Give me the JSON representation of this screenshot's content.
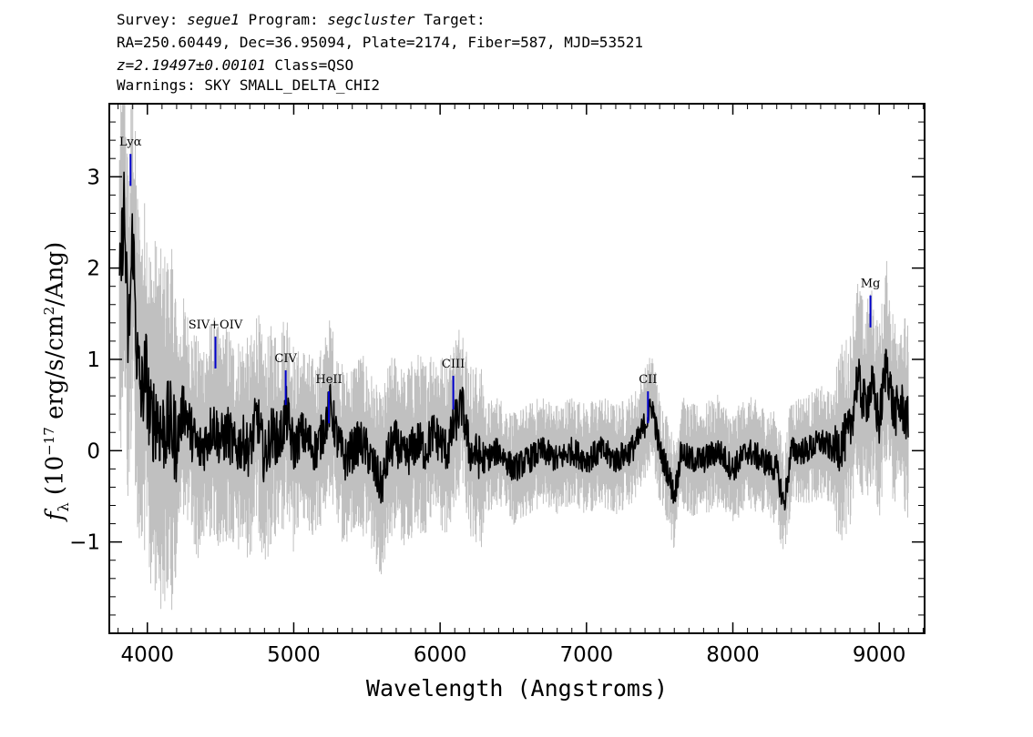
{
  "header": {
    "survey_label": "Survey:",
    "survey_value": "segue1",
    "program_label": "Program:",
    "program_value": "segcluster",
    "target_label": "Target:",
    "line2": "RA=250.60449, Dec=36.95094, Plate=2174, Fiber=587, MJD=53521",
    "redshift": "z=2.19497±0.00101",
    "class_text": "Class=QSO",
    "warnings": "Warnings: SKY SMALL_DELTA_CHI2"
  },
  "colors": {
    "flux": "#000000",
    "error": "#c0c0c0",
    "line_marker": "#0000cc",
    "frame": "#000000"
  },
  "chart_data": {
    "type": "line",
    "xlabel": "Wavelength (Angstroms)",
    "ylabel_prefix": "f",
    "ylabel_sub": "λ",
    "ylabel_rest": " (10",
    "ylabel_exp": "−17",
    "ylabel_units": " erg/s/cm",
    "ylabel_exp2": "2",
    "ylabel_end": "/Ang)",
    "xlim": [
      3740,
      9310
    ],
    "ylim": [
      -2.0,
      3.8
    ],
    "x_ticks": [
      4000,
      5000,
      6000,
      7000,
      8000,
      9000
    ],
    "x_tick_labels": [
      "4000",
      "5000",
      "6000",
      "7000",
      "8000",
      "9000"
    ],
    "y_ticks": [
      -1,
      0,
      1,
      2,
      3
    ],
    "y_tick_labels": [
      "−1",
      "0",
      "1",
      "2",
      "3"
    ],
    "flux_series": {
      "name": "flux",
      "x": [
        3810,
        3840,
        3870,
        3900,
        3930,
        3960,
        3990,
        4020,
        4060,
        4100,
        4150,
        4200,
        4250,
        4300,
        4350,
        4400,
        4450,
        4500,
        4550,
        4600,
        4650,
        4700,
        4750,
        4800,
        4850,
        4900,
        4950,
        5000,
        5050,
        5100,
        5150,
        5200,
        5250,
        5300,
        5350,
        5400,
        5450,
        5500,
        5550,
        5600,
        5650,
        5700,
        5750,
        5800,
        5850,
        5900,
        5950,
        6000,
        6050,
        6100,
        6150,
        6200,
        6300,
        6400,
        6500,
        6600,
        6700,
        6800,
        6900,
        7000,
        7100,
        7200,
        7300,
        7350,
        7400,
        7450,
        7500,
        7550,
        7600,
        7650,
        7700,
        7800,
        7900,
        8000,
        8100,
        8200,
        8300,
        8350,
        8400,
        8500,
        8600,
        8700,
        8800,
        8850,
        8900,
        8950,
        9000,
        9050,
        9100,
        9150,
        9200
      ],
      "y": [
        1.7,
        2.7,
        1.1,
        2.4,
        1.0,
        0.6,
        0.9,
        0.3,
        0.4,
        0.2,
        0.3,
        0.1,
        0.5,
        0.2,
        0.0,
        0.1,
        0.3,
        0.1,
        0.2,
        0.0,
        0.1,
        0.0,
        0.4,
        -0.1,
        0.2,
        0.1,
        0.4,
        0.0,
        0.2,
        0.1,
        0.0,
        0.2,
        0.5,
        0.1,
        -0.1,
        0.0,
        0.1,
        0.0,
        -0.2,
        -0.4,
        0.0,
        0.1,
        -0.1,
        0.0,
        0.1,
        0.0,
        0.2,
        0.1,
        0.0,
        0.3,
        0.5,
        0.0,
        -0.1,
        0.0,
        -0.2,
        -0.1,
        0.0,
        -0.1,
        0.0,
        -0.1,
        0.0,
        -0.1,
        0.0,
        0.1,
        0.3,
        0.5,
        0.0,
        -0.2,
        -0.5,
        0.0,
        -0.1,
        -0.1,
        0.0,
        -0.2,
        0.0,
        -0.1,
        -0.2,
        -0.6,
        0.0,
        0.0,
        0.1,
        0.0,
        0.2,
        0.8,
        0.5,
        0.7,
        0.3,
        1.0,
        0.4,
        0.5,
        0.3
      ]
    },
    "spectral_lines": [
      {
        "label": "Lyα",
        "x": 3885,
        "y0": 2.9,
        "y1": 3.25
      },
      {
        "label": "SIV+OIV",
        "x": 4465,
        "y0": 0.9,
        "y1": 1.25
      },
      {
        "label": "CIV",
        "x": 4945,
        "y0": 0.5,
        "y1": 0.88
      },
      {
        "label": "HeII",
        "x": 5240,
        "y0": 0.3,
        "y1": 0.65
      },
      {
        "label": "CIII",
        "x": 6090,
        "y0": 0.45,
        "y1": 0.82
      },
      {
        "label": "CII",
        "x": 7420,
        "y0": 0.3,
        "y1": 0.65
      },
      {
        "label": "Mg",
        "x": 8940,
        "y0": 1.35,
        "y1": 1.7
      }
    ]
  }
}
